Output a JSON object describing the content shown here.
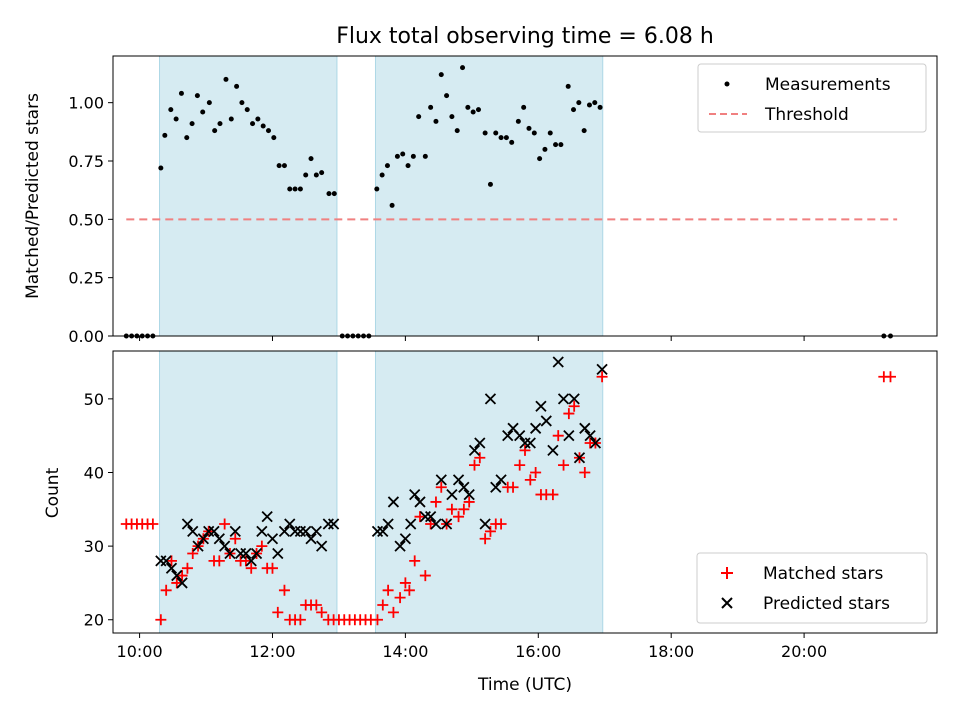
{
  "title": "Flux total observing time = 6.08 h",
  "colors": {
    "band": "#add8e6",
    "threshold": "#f08080",
    "matched": "#ff0000",
    "predicted": "#000000",
    "measurement": "#000000"
  },
  "chart_data": [
    {
      "type": "scatter",
      "ylabel": "Matched/Predicted stars",
      "xlim": [
        9.6,
        22.0
      ],
      "ylim": [
        0,
        1.2
      ],
      "y_ticks": [
        0.0,
        0.25,
        0.5,
        0.75,
        1.0
      ],
      "y_tick_labels": [
        "0.00",
        "0.25",
        "0.50",
        "0.75",
        "1.00"
      ],
      "legend": {
        "position": "top-right",
        "items": [
          "Measurements",
          "Threshold"
        ]
      },
      "threshold": {
        "name": "Threshold",
        "value": 0.5,
        "x_range": [
          9.8,
          21.4
        ]
      },
      "observing_windows": [
        [
          10.3,
          12.97
        ],
        [
          13.55,
          16.97
        ]
      ],
      "series": [
        {
          "name": "Measurements",
          "points": [
            [
              9.8,
              0
            ],
            [
              9.88,
              0
            ],
            [
              9.96,
              0
            ],
            [
              10.04,
              0
            ],
            [
              10.12,
              0
            ],
            [
              10.2,
              0
            ],
            [
              10.32,
              0.72
            ],
            [
              10.38,
              0.86
            ],
            [
              10.47,
              0.97
            ],
            [
              10.55,
              0.93
            ],
            [
              10.63,
              1.04
            ],
            [
              10.71,
              0.85
            ],
            [
              10.79,
              0.91
            ],
            [
              10.87,
              1.03
            ],
            [
              10.95,
              0.96
            ],
            [
              11.05,
              1.0
            ],
            [
              11.13,
              0.88
            ],
            [
              11.21,
              0.91
            ],
            [
              11.3,
              1.1
            ],
            [
              11.38,
              0.93
            ],
            [
              11.46,
              1.07
            ],
            [
              11.54,
              1.0
            ],
            [
              11.62,
              0.97
            ],
            [
              11.7,
              0.91
            ],
            [
              11.78,
              0.93
            ],
            [
              11.86,
              0.9
            ],
            [
              11.94,
              0.88
            ],
            [
              12.02,
              0.85
            ],
            [
              12.1,
              0.73
            ],
            [
              12.18,
              0.73
            ],
            [
              12.26,
              0.63
            ],
            [
              12.34,
              0.63
            ],
            [
              12.42,
              0.63
            ],
            [
              12.5,
              0.69
            ],
            [
              12.58,
              0.76
            ],
            [
              12.66,
              0.69
            ],
            [
              12.74,
              0.7
            ],
            [
              12.85,
              0.61
            ],
            [
              12.93,
              0.61
            ],
            [
              13.05,
              0
            ],
            [
              13.13,
              0
            ],
            [
              13.21,
              0
            ],
            [
              13.29,
              0
            ],
            [
              13.37,
              0
            ],
            [
              13.45,
              0
            ],
            [
              13.57,
              0.63
            ],
            [
              13.65,
              0.69
            ],
            [
              13.73,
              0.73
            ],
            [
              13.8,
              0.56
            ],
            [
              13.88,
              0.77
            ],
            [
              13.96,
              0.78
            ],
            [
              14.04,
              0.73
            ],
            [
              14.12,
              0.77
            ],
            [
              14.2,
              0.94
            ],
            [
              14.3,
              0.77
            ],
            [
              14.38,
              0.98
            ],
            [
              14.46,
              0.92
            ],
            [
              14.54,
              1.12
            ],
            [
              14.62,
              1.03
            ],
            [
              14.7,
              0.94
            ],
            [
              14.78,
              0.88
            ],
            [
              14.86,
              1.15
            ],
            [
              14.94,
              0.98
            ],
            [
              15.02,
              0.96
            ],
            [
              15.1,
              0.97
            ],
            [
              15.2,
              0.87
            ],
            [
              15.28,
              0.65
            ],
            [
              15.36,
              0.87
            ],
            [
              15.44,
              0.85
            ],
            [
              15.52,
              0.85
            ],
            [
              15.6,
              0.83
            ],
            [
              15.7,
              0.92
            ],
            [
              15.78,
              0.98
            ],
            [
              15.86,
              0.89
            ],
            [
              15.94,
              0.87
            ],
            [
              16.02,
              0.76
            ],
            [
              16.1,
              0.8
            ],
            [
              16.18,
              0.87
            ],
            [
              16.26,
              0.82
            ],
            [
              16.34,
              0.82
            ],
            [
              16.45,
              1.07
            ],
            [
              16.53,
              0.97
            ],
            [
              16.61,
              1.0
            ],
            [
              16.69,
              0.88
            ],
            [
              16.77,
              0.99
            ],
            [
              16.85,
              1.0
            ],
            [
              16.93,
              0.98
            ],
            [
              21.2,
              0
            ],
            [
              21.3,
              0
            ]
          ]
        }
      ]
    },
    {
      "type": "scatter",
      "xlabel": "Time (UTC)",
      "ylabel": "Count",
      "xlim": [
        9.6,
        22.0
      ],
      "ylim": [
        18.2,
        56.5
      ],
      "x_ticks": [
        10,
        12,
        14,
        16,
        18,
        20
      ],
      "x_tick_labels": [
        "10:00",
        "12:00",
        "14:00",
        "16:00",
        "18:00",
        "20:00"
      ],
      "y_ticks": [
        20,
        30,
        40,
        50
      ],
      "y_tick_labels": [
        "20",
        "30",
        "40",
        "50"
      ],
      "legend": {
        "position": "bottom-right",
        "items": [
          "Matched stars",
          "Predicted stars"
        ]
      },
      "observing_windows": [
        [
          10.3,
          12.97
        ],
        [
          13.55,
          16.97
        ]
      ],
      "series": [
        {
          "name": "Matched stars",
          "marker": "plus",
          "points": [
            [
              9.8,
              33
            ],
            [
              9.88,
              33
            ],
            [
              9.96,
              33
            ],
            [
              10.04,
              33
            ],
            [
              10.12,
              33
            ],
            [
              10.2,
              33
            ],
            [
              10.32,
              20
            ],
            [
              10.4,
              24
            ],
            [
              10.48,
              28
            ],
            [
              10.56,
              25
            ],
            [
              10.64,
              26
            ],
            [
              10.72,
              27
            ],
            [
              10.8,
              29
            ],
            [
              10.88,
              30
            ],
            [
              10.96,
              31
            ],
            [
              11.04,
              32
            ],
            [
              11.12,
              28
            ],
            [
              11.2,
              28
            ],
            [
              11.28,
              33
            ],
            [
              11.36,
              29
            ],
            [
              11.44,
              31
            ],
            [
              11.52,
              28
            ],
            [
              11.6,
              28
            ],
            [
              11.68,
              27
            ],
            [
              11.76,
              29
            ],
            [
              11.84,
              30
            ],
            [
              11.92,
              27
            ],
            [
              12.0,
              27
            ],
            [
              12.08,
              21
            ],
            [
              12.18,
              24
            ],
            [
              12.26,
              20
            ],
            [
              12.34,
              20
            ],
            [
              12.42,
              20
            ],
            [
              12.5,
              22
            ],
            [
              12.58,
              22
            ],
            [
              12.66,
              22
            ],
            [
              12.74,
              21
            ],
            [
              12.84,
              20
            ],
            [
              12.92,
              20
            ],
            [
              13.0,
              20
            ],
            [
              13.08,
              20
            ],
            [
              13.16,
              20
            ],
            [
              13.24,
              20
            ],
            [
              13.32,
              20
            ],
            [
              13.4,
              20
            ],
            [
              13.48,
              20
            ],
            [
              13.58,
              20
            ],
            [
              13.66,
              22
            ],
            [
              13.74,
              24
            ],
            [
              13.82,
              21
            ],
            [
              13.92,
              23
            ],
            [
              14.0,
              25
            ],
            [
              14.06,
              24
            ],
            [
              14.14,
              28
            ],
            [
              14.22,
              34
            ],
            [
              14.3,
              26
            ],
            [
              14.38,
              33
            ],
            [
              14.46,
              36
            ],
            [
              14.54,
              38
            ],
            [
              14.62,
              33
            ],
            [
              14.7,
              35
            ],
            [
              14.8,
              34
            ],
            [
              14.88,
              35
            ],
            [
              14.96,
              36
            ],
            [
              15.04,
              41
            ],
            [
              15.12,
              42
            ],
            [
              15.2,
              31
            ],
            [
              15.28,
              32
            ],
            [
              15.36,
              33
            ],
            [
              15.44,
              33
            ],
            [
              15.54,
              38
            ],
            [
              15.62,
              38
            ],
            [
              15.72,
              41
            ],
            [
              15.8,
              43
            ],
            [
              15.88,
              39
            ],
            [
              15.96,
              40
            ],
            [
              16.04,
              37
            ],
            [
              16.12,
              37
            ],
            [
              16.22,
              37
            ],
            [
              16.3,
              45
            ],
            [
              16.38,
              41
            ],
            [
              16.46,
              48
            ],
            [
              16.54,
              49
            ],
            [
              16.62,
              42
            ],
            [
              16.7,
              40
            ],
            [
              16.78,
              44
            ],
            [
              16.86,
              44
            ],
            [
              16.96,
              53
            ],
            [
              21.2,
              53
            ],
            [
              21.3,
              53
            ]
          ]
        },
        {
          "name": "Predicted stars",
          "marker": "cross",
          "points": [
            [
              10.32,
              28
            ],
            [
              10.4,
              28
            ],
            [
              10.48,
              27
            ],
            [
              10.56,
              26
            ],
            [
              10.64,
              25
            ],
            [
              10.72,
              33
            ],
            [
              10.8,
              32
            ],
            [
              10.88,
              30
            ],
            [
              10.96,
              31
            ],
            [
              11.04,
              32
            ],
            [
              11.12,
              32
            ],
            [
              11.2,
              31
            ],
            [
              11.28,
              30
            ],
            [
              11.36,
              29
            ],
            [
              11.44,
              32
            ],
            [
              11.52,
              29
            ],
            [
              11.6,
              29
            ],
            [
              11.68,
              28
            ],
            [
              11.76,
              29
            ],
            [
              11.84,
              32
            ],
            [
              11.92,
              34
            ],
            [
              12.0,
              31
            ],
            [
              12.08,
              29
            ],
            [
              12.18,
              32
            ],
            [
              12.26,
              33
            ],
            [
              12.34,
              32
            ],
            [
              12.42,
              32
            ],
            [
              12.5,
              32
            ],
            [
              12.58,
              31
            ],
            [
              12.66,
              32
            ],
            [
              12.74,
              30
            ],
            [
              12.84,
              33
            ],
            [
              12.92,
              33
            ],
            [
              13.58,
              32
            ],
            [
              13.66,
              32
            ],
            [
              13.74,
              33
            ],
            [
              13.82,
              36
            ],
            [
              13.92,
              30
            ],
            [
              14.0,
              31
            ],
            [
              14.08,
              33
            ],
            [
              14.14,
              37
            ],
            [
              14.22,
              36
            ],
            [
              14.3,
              34
            ],
            [
              14.38,
              34
            ],
            [
              14.46,
              33
            ],
            [
              14.54,
              39
            ],
            [
              14.62,
              33
            ],
            [
              14.7,
              37
            ],
            [
              14.8,
              39
            ],
            [
              14.88,
              38
            ],
            [
              14.96,
              37
            ],
            [
              15.04,
              43
            ],
            [
              15.12,
              44
            ],
            [
              15.2,
              33
            ],
            [
              15.28,
              50
            ],
            [
              15.36,
              38
            ],
            [
              15.44,
              39
            ],
            [
              15.54,
              45
            ],
            [
              15.62,
              46
            ],
            [
              15.72,
              45
            ],
            [
              15.8,
              44
            ],
            [
              15.88,
              44
            ],
            [
              15.96,
              46
            ],
            [
              16.04,
              49
            ],
            [
              16.12,
              47
            ],
            [
              16.22,
              43
            ],
            [
              16.3,
              55
            ],
            [
              16.38,
              50
            ],
            [
              16.46,
              45
            ],
            [
              16.54,
              50
            ],
            [
              16.62,
              42
            ],
            [
              16.7,
              46
            ],
            [
              16.78,
              45
            ],
            [
              16.86,
              44
            ],
            [
              16.96,
              54
            ]
          ]
        }
      ]
    }
  ]
}
